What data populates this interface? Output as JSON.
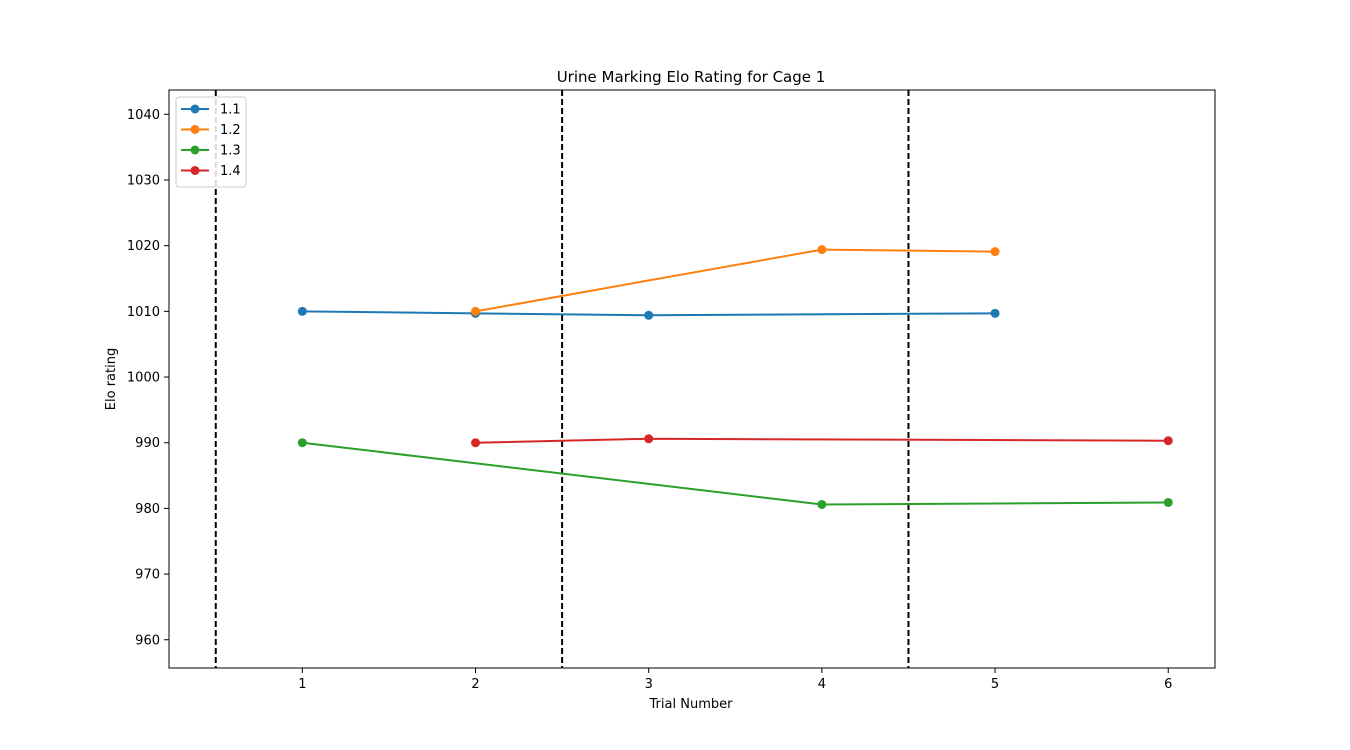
{
  "chart_data": {
    "type": "line",
    "title": "Urine Marking Elo Rating for  Cage 1",
    "xlabel": "Trial Number",
    "ylabel": "Elo rating",
    "xlim": [
      0.23,
      6.27
    ],
    "ylim": [
      955.7,
      1043.7
    ],
    "xticks": [
      1,
      2,
      3,
      4,
      5,
      6
    ],
    "yticks": [
      960,
      970,
      980,
      990,
      1000,
      1010,
      1020,
      1030,
      1040
    ],
    "grid": false,
    "legend_position": "top-left",
    "vlines": [
      0.5,
      2.5,
      4.5
    ],
    "vline_color": "#000000",
    "series": [
      {
        "name": "1.1",
        "color": "#1f77b4",
        "x": [
          1,
          2,
          3,
          5
        ],
        "y": [
          1010.0,
          1009.7,
          1009.4,
          1009.7
        ]
      },
      {
        "name": "1.2",
        "color": "#ff7f0e",
        "x": [
          2,
          4,
          5
        ],
        "y": [
          1010.0,
          1019.4,
          1019.1
        ]
      },
      {
        "name": "1.3",
        "color": "#2ca02c",
        "x": [
          1,
          4,
          6
        ],
        "y": [
          990.0,
          980.6,
          980.9
        ]
      },
      {
        "name": "1.4",
        "color": "#d62728",
        "x": [
          2,
          3,
          6
        ],
        "y": [
          990.0,
          990.6,
          990.3
        ]
      }
    ]
  }
}
